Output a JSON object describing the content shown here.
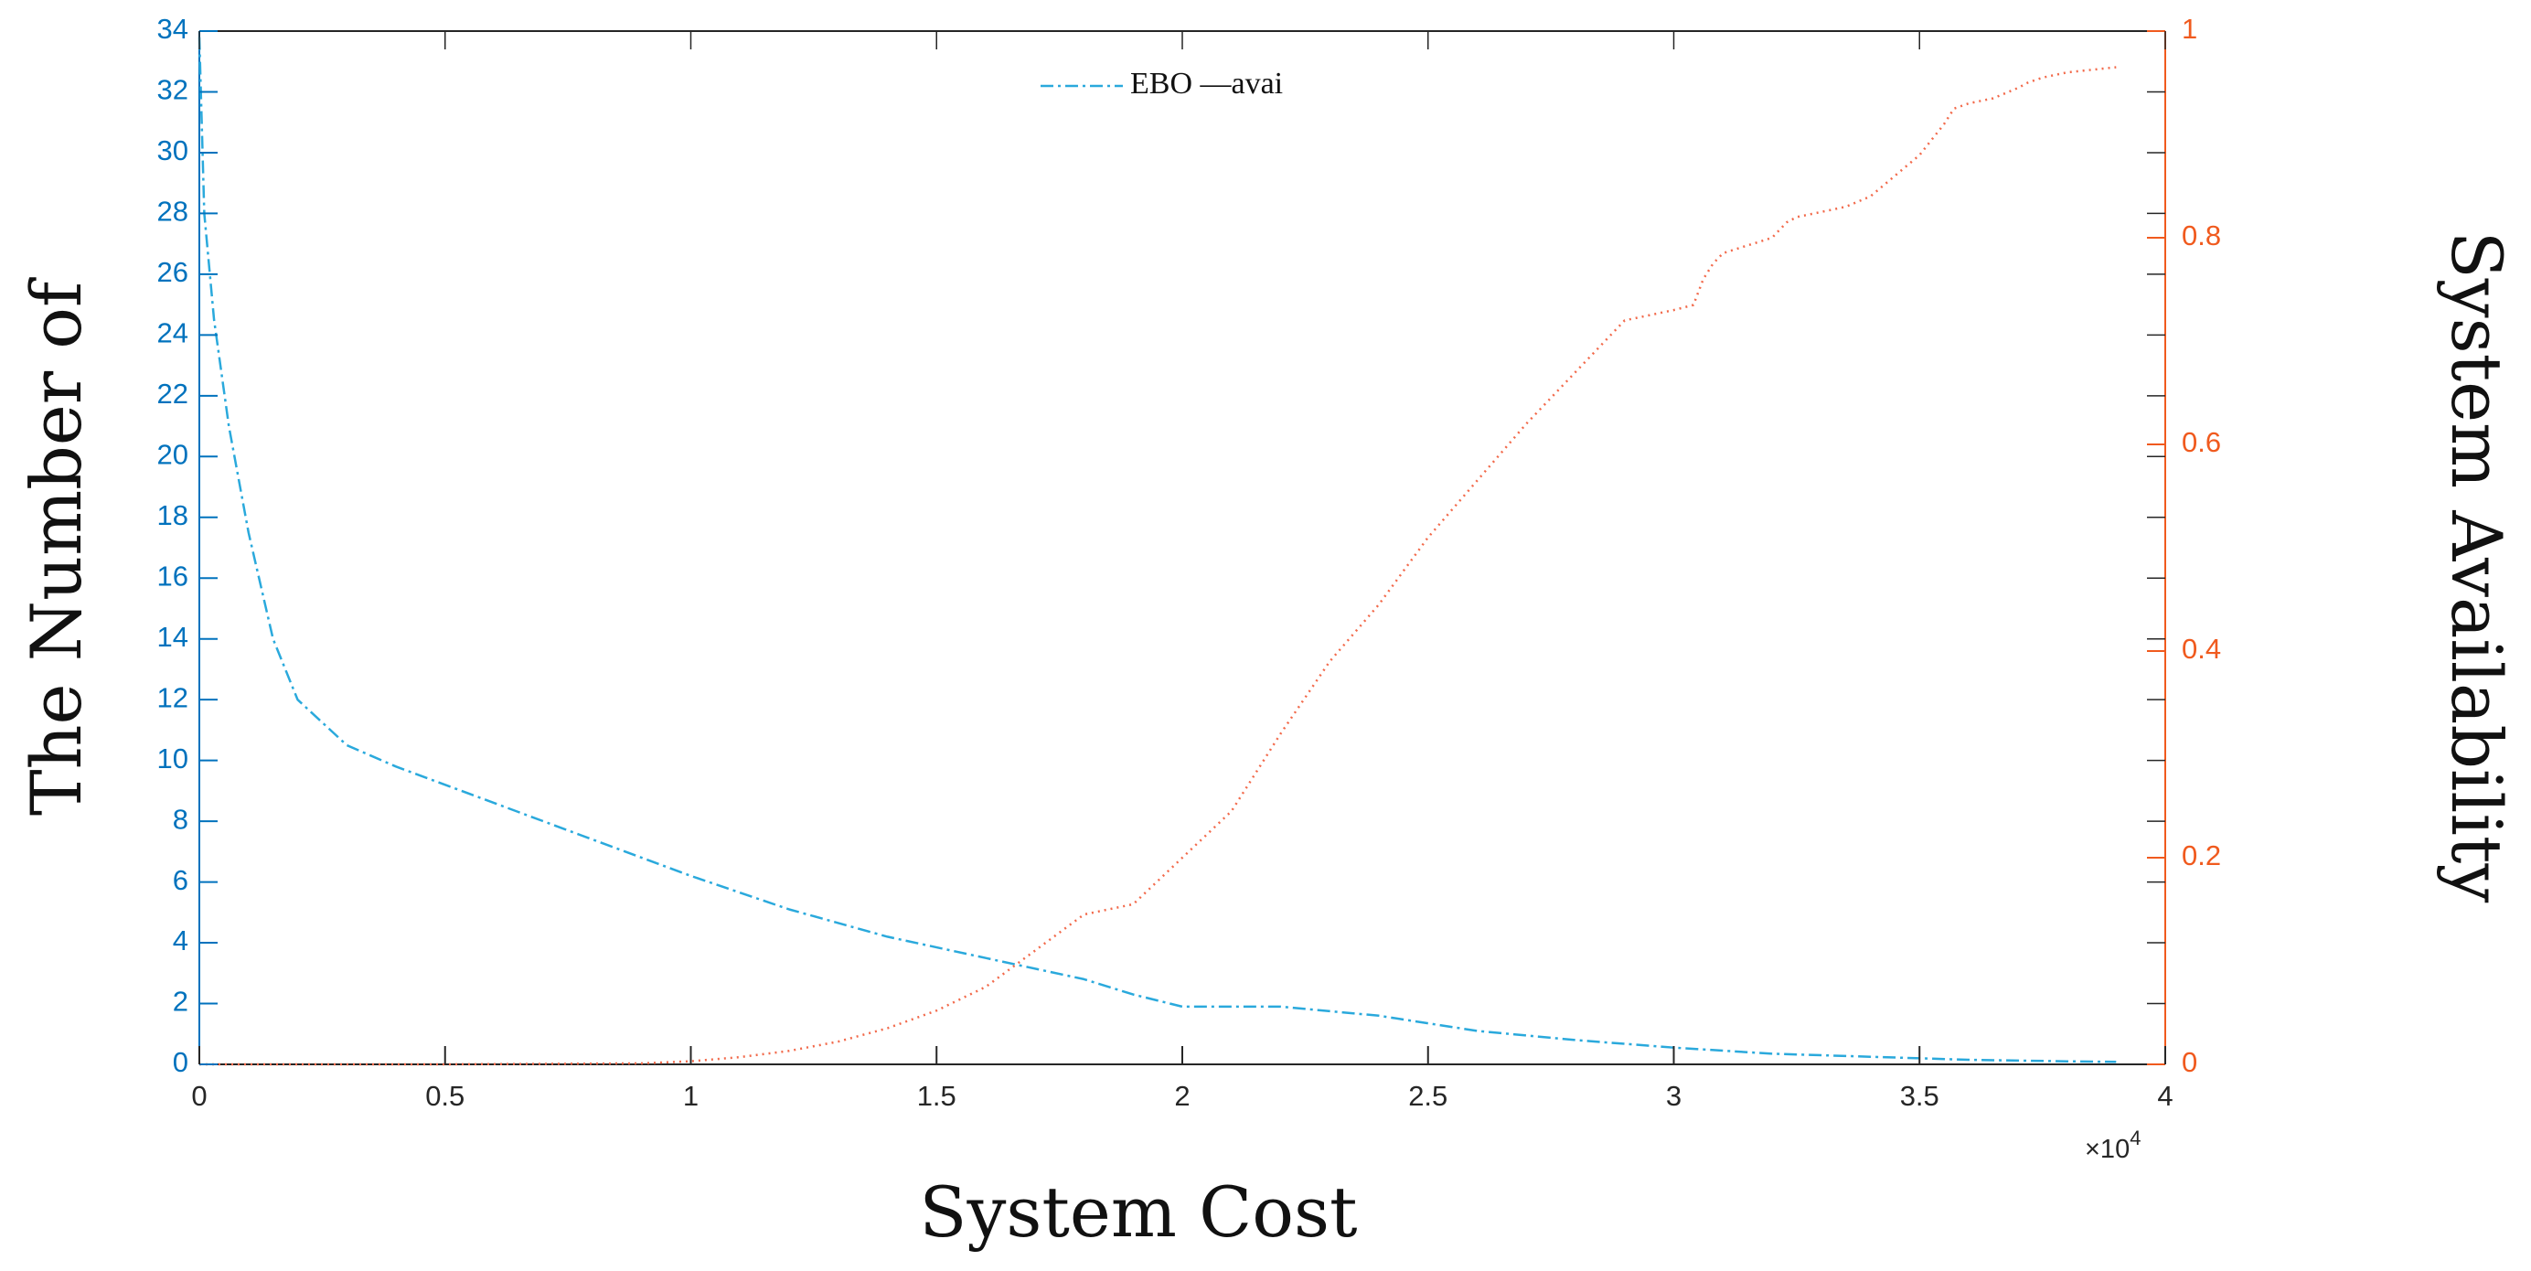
{
  "chart_data": {
    "type": "line",
    "title": "",
    "xlabel": "System Cost",
    "ylabel_left": "The Number of",
    "ylabel_right": "System Availability",
    "x_exponent_label": "×10",
    "x_exponent_power": "4",
    "xlim": [
      0,
      4
    ],
    "ylim_left": [
      0,
      34
    ],
    "ylim_right": [
      0,
      1
    ],
    "x_ticks": [
      "0",
      "0.5",
      "1",
      "1.5",
      "2",
      "2.5",
      "3",
      "3.5",
      "4"
    ],
    "y_ticks_left": [
      "0",
      "2",
      "4",
      "6",
      "8",
      "10",
      "12",
      "14",
      "16",
      "18",
      "20",
      "22",
      "24",
      "26",
      "28",
      "30",
      "32",
      "34"
    ],
    "y_ticks_right": [
      "0",
      "0.2",
      "0.4",
      "0.6",
      "0.8",
      "1"
    ],
    "legend": [
      "EBO",
      "avai"
    ],
    "legend_text": "EBO —avai",
    "colors": {
      "left_axis": "#0072bd",
      "right_axis": "#f05a1e",
      "ebo": "#2aa9dc",
      "avai": "#f26a4b"
    },
    "series": [
      {
        "name": "EBO",
        "axis": "left",
        "style": "dash-dot",
        "x": [
          0,
          0.01,
          0.03,
          0.06,
          0.1,
          0.15,
          0.2,
          0.3,
          0.4,
          0.6,
          0.8,
          1.0,
          1.2,
          1.4,
          1.6,
          1.8,
          1.9,
          2.0,
          2.1,
          2.2,
          2.4,
          2.6,
          2.8,
          3.0,
          3.2,
          3.4,
          3.6,
          3.8,
          3.9
        ],
        "values": [
          33.8,
          28,
          24.5,
          21,
          17.5,
          14,
          12,
          10.5,
          9.8,
          8.6,
          7.4,
          6.2,
          5.1,
          4.2,
          3.5,
          2.8,
          2.3,
          1.9,
          1.9,
          1.9,
          1.6,
          1.1,
          0.8,
          0.55,
          0.35,
          0.25,
          0.15,
          0.1,
          0.08
        ]
      },
      {
        "name": "avai",
        "axis": "right",
        "style": "dotted",
        "x": [
          0,
          0.5,
          0.9,
          1.0,
          1.1,
          1.2,
          1.3,
          1.4,
          1.5,
          1.6,
          1.7,
          1.8,
          1.9,
          2.0,
          2.1,
          2.2,
          2.3,
          2.4,
          2.5,
          2.6,
          2.7,
          2.8,
          2.9,
          3.0,
          3.04,
          3.06,
          3.08,
          3.1,
          3.2,
          3.23,
          3.25,
          3.3,
          3.35,
          3.4,
          3.5,
          3.55,
          3.57,
          3.6,
          3.65,
          3.7,
          3.72,
          3.75,
          3.8,
          3.9
        ],
        "values": [
          0,
          0,
          0.001,
          0.003,
          0.007,
          0.013,
          0.022,
          0.035,
          0.052,
          0.075,
          0.11,
          0.145,
          0.155,
          0.2,
          0.245,
          0.32,
          0.39,
          0.445,
          0.51,
          0.565,
          0.62,
          0.67,
          0.72,
          0.73,
          0.735,
          0.76,
          0.775,
          0.785,
          0.8,
          0.815,
          0.82,
          0.825,
          0.83,
          0.84,
          0.88,
          0.91,
          0.925,
          0.93,
          0.935,
          0.945,
          0.95,
          0.955,
          0.96,
          0.965
        ]
      }
    ]
  }
}
